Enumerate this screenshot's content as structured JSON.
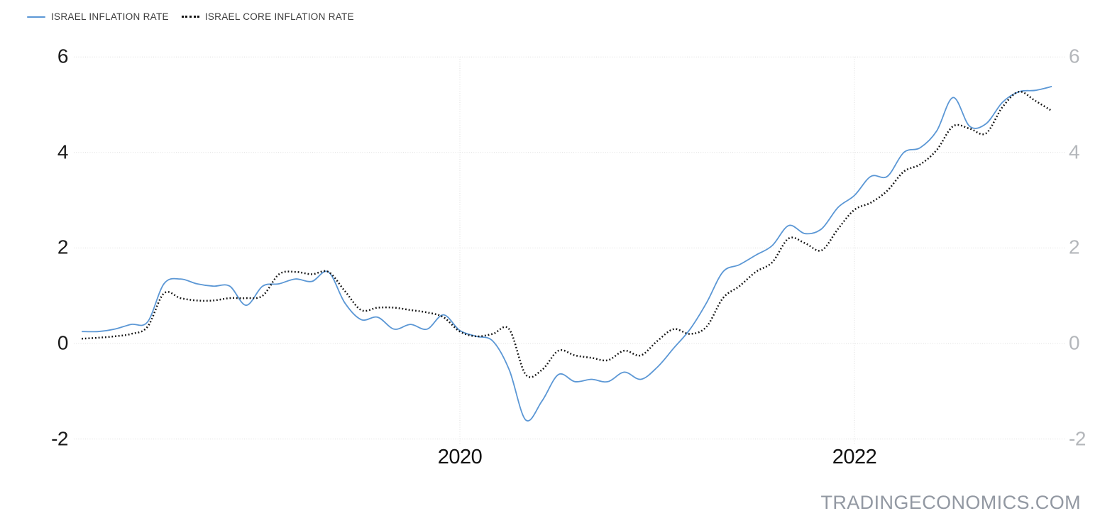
{
  "legend": [
    {
      "label": "ISRAEL INFLATION RATE",
      "marker": "solid-line",
      "color": "#5b97d5"
    },
    {
      "label": "ISRAEL CORE INFLATION RATE",
      "marker": "dotted-line",
      "color": "#141414"
    }
  ],
  "watermark": "TRADINGECONOMICS.COM",
  "colors": {
    "inflation_line": "#5b97d5",
    "core_inflation_line": "#141414",
    "grid": "#dcdcdc",
    "left_axis_text": "#1a1a1a",
    "right_axis_text": "#b4b7bb",
    "x_axis_text": "#111111",
    "watermark_text": "#9298a2",
    "background": "#ffffff"
  },
  "chart_data": {
    "type": "line",
    "x": [
      "2018-02",
      "2018-03",
      "2018-04",
      "2018-05",
      "2018-06",
      "2018-07",
      "2018-08",
      "2018-09",
      "2018-10",
      "2018-11",
      "2018-12",
      "2019-01",
      "2019-02",
      "2019-03",
      "2019-04",
      "2019-05",
      "2019-06",
      "2019-07",
      "2019-08",
      "2019-09",
      "2019-10",
      "2019-11",
      "2019-12",
      "2020-01",
      "2020-02",
      "2020-03",
      "2020-04",
      "2020-05",
      "2020-06",
      "2020-07",
      "2020-08",
      "2020-09",
      "2020-10",
      "2020-11",
      "2020-12",
      "2021-01",
      "2021-02",
      "2021-03",
      "2021-04",
      "2021-05",
      "2021-06",
      "2021-07",
      "2021-08",
      "2021-09",
      "2021-10",
      "2021-11",
      "2021-12",
      "2022-01",
      "2022-02",
      "2022-03",
      "2022-04",
      "2022-05",
      "2022-06",
      "2022-07",
      "2022-08",
      "2022-09",
      "2022-10",
      "2022-11",
      "2022-12",
      "2023-01"
    ],
    "series": [
      {
        "name": "ISRAEL INFLATION RATE",
        "style": "solid",
        "color": "#5b97d5",
        "values": [
          0.25,
          0.25,
          0.3,
          0.4,
          0.45,
          1.25,
          1.35,
          1.25,
          1.2,
          1.2,
          0.8,
          1.2,
          1.25,
          1.35,
          1.3,
          1.5,
          0.85,
          0.5,
          0.55,
          0.3,
          0.4,
          0.3,
          0.6,
          0.27,
          0.15,
          0.05,
          -0.55,
          -1.6,
          -1.2,
          -0.65,
          -0.8,
          -0.75,
          -0.8,
          -0.6,
          -0.75,
          -0.5,
          -0.1,
          0.3,
          0.85,
          1.5,
          1.65,
          1.85,
          2.05,
          2.47,
          2.3,
          2.4,
          2.85,
          3.1,
          3.5,
          3.5,
          4.0,
          4.1,
          4.45,
          5.15,
          4.55,
          4.6,
          5.05,
          5.27,
          5.3,
          5.38
        ]
      },
      {
        "name": "ISRAEL CORE INFLATION RATE",
        "style": "dotted",
        "color": "#141414",
        "values": [
          0.1,
          0.12,
          0.15,
          0.2,
          0.35,
          1.05,
          0.95,
          0.9,
          0.9,
          0.95,
          0.95,
          1.0,
          1.45,
          1.5,
          1.45,
          1.5,
          1.1,
          0.7,
          0.75,
          0.75,
          0.7,
          0.65,
          0.55,
          0.25,
          0.15,
          0.2,
          0.3,
          -0.65,
          -0.55,
          -0.15,
          -0.25,
          -0.3,
          -0.35,
          -0.15,
          -0.25,
          0.05,
          0.3,
          0.2,
          0.35,
          0.95,
          1.2,
          1.5,
          1.7,
          2.2,
          2.1,
          1.95,
          2.4,
          2.8,
          2.95,
          3.2,
          3.6,
          3.75,
          4.05,
          4.55,
          4.5,
          4.4,
          4.95,
          5.27,
          5.08,
          4.87
        ]
      }
    ],
    "ylim": [
      -2,
      6
    ],
    "yticks": [
      6,
      4,
      2,
      0,
      -2
    ],
    "xticks": [
      {
        "label": "2020",
        "month_index": 23
      },
      {
        "label": "2022",
        "month_index": 47
      }
    ],
    "grid": true,
    "legend_position": "top-left",
    "title": "",
    "xlabel": "",
    "ylabel": ""
  }
}
